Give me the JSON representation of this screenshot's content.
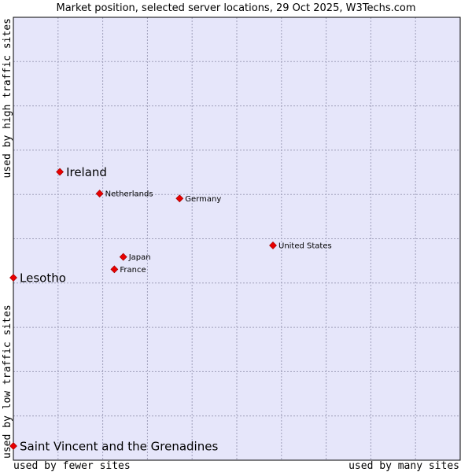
{
  "chart_data": {
    "type": "scatter",
    "title": "Market position, selected server locations, 29 Oct 2025, W3Techs.com",
    "xlabel_left": "used by fewer sites",
    "xlabel_right": "used by many sites",
    "ylabel_top": "used by high traffic sites",
    "ylabel_bottom": "used by low traffic sites",
    "xlim": [
      0,
      10
    ],
    "ylim": [
      0,
      10
    ],
    "grid": true,
    "points": [
      {
        "label": "Ireland",
        "x": 1.04,
        "y": 6.51,
        "highlight": true
      },
      {
        "label": "Netherlands",
        "x": 1.93,
        "y": 6.02,
        "highlight": false
      },
      {
        "label": "Germany",
        "x": 3.72,
        "y": 5.91,
        "highlight": false
      },
      {
        "label": "United States",
        "x": 5.81,
        "y": 4.85,
        "highlight": false
      },
      {
        "label": "Japan",
        "x": 2.46,
        "y": 4.59,
        "highlight": false
      },
      {
        "label": "France",
        "x": 2.26,
        "y": 4.31,
        "highlight": false
      },
      {
        "label": "Lesotho",
        "x": 0.0,
        "y": 4.12,
        "highlight": true
      },
      {
        "label": "Saint Vincent and the Grenadines",
        "x": 0.0,
        "y": 0.32,
        "highlight": true
      }
    ],
    "colors": {
      "plot_bg": "#e6e6fa",
      "grid": "#a0a0bb",
      "border": "#000000",
      "marker": "#e80000",
      "marker_edge": "#990000"
    }
  }
}
